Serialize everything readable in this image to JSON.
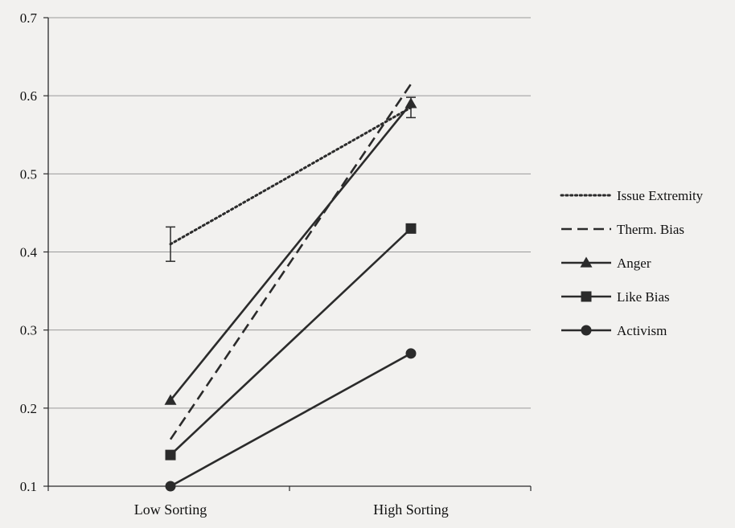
{
  "chart_data": {
    "type": "line",
    "title": "",
    "xlabel": "",
    "ylabel": "",
    "categories": [
      "Low Sorting",
      "High Sorting"
    ],
    "ylim": [
      0.1,
      0.7
    ],
    "yticks": [
      "0.1",
      "0.2",
      "0.3",
      "0.4",
      "0.5",
      "0.6",
      "0.7"
    ],
    "grid": "horizontal",
    "legend_position": "right",
    "series": [
      {
        "name": "Issue Extremity",
        "values": [
          0.41,
          0.585
        ],
        "line": "dotted",
        "marker": "none",
        "error_bars": [
          [
            0.388,
            0.432
          ],
          [
            0.572,
            0.598
          ]
        ]
      },
      {
        "name": "Therm. Bias",
        "values": [
          0.16,
          0.615
        ],
        "line": "dashed",
        "marker": "none"
      },
      {
        "name": "Anger",
        "values": [
          0.21,
          0.59
        ],
        "line": "solid",
        "marker": "triangle"
      },
      {
        "name": "Like Bias",
        "values": [
          0.14,
          0.43
        ],
        "line": "solid",
        "marker": "square"
      },
      {
        "name": "Activism",
        "values": [
          0.1,
          0.27
        ],
        "line": "solid",
        "marker": "circle"
      }
    ],
    "colors": {
      "line": "#2b2b2b",
      "grid": "#9a9a9a",
      "background": "#f2f1ef"
    }
  }
}
